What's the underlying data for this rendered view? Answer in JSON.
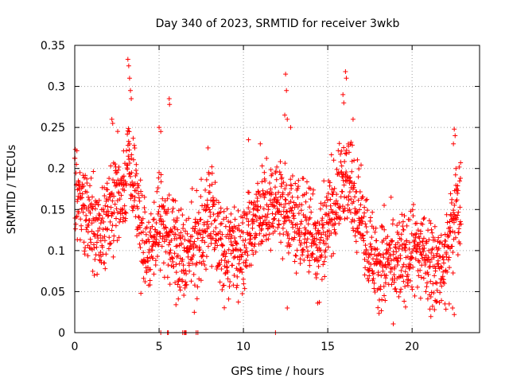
{
  "chart_data": {
    "type": "scatter",
    "title": "Day 340 of 2023, SRMTID for receiver 3wkb",
    "xlabel": "GPS time / hours",
    "ylabel": "SRMTID / TECUs",
    "xlim": [
      0,
      24
    ],
    "ylim": [
      0,
      0.35
    ],
    "xticks": [
      0,
      5,
      10,
      15,
      20
    ],
    "yticks": [
      0,
      0.05,
      0.1,
      0.15,
      0.2,
      0.25,
      0.3,
      0.35
    ],
    "xtick_labels": [
      "0",
      "5",
      "10",
      "15",
      "20"
    ],
    "ytick_labels": [
      "0",
      "0.05",
      "0.1",
      "0.15",
      "0.2",
      "0.25",
      "0.3",
      "0.35"
    ],
    "grid": true,
    "marker": "+",
    "color": "#ff0000",
    "series": [
      {
        "name": "SRMTID",
        "trend_x": [
          0,
          0.2,
          0.5,
          1.0,
          1.5,
          2.0,
          2.5,
          3.0,
          3.2,
          3.6,
          4.0,
          4.5,
          5.0,
          5.3,
          5.8,
          6.5,
          7.0,
          7.5,
          8.0,
          8.5,
          9.0,
          9.5,
          10.0,
          10.5,
          11.0,
          11.5,
          12.0,
          12.5,
          13.0,
          13.5,
          14.0,
          14.5,
          15.0,
          15.5,
          16.0,
          16.5,
          17.0,
          17.5,
          18.0,
          18.5,
          19.0,
          19.5,
          20.0,
          20.5,
          21.0,
          21.5,
          22.0,
          22.5,
          22.9
        ],
        "trend_y": [
          0.16,
          0.18,
          0.15,
          0.13,
          0.12,
          0.15,
          0.16,
          0.18,
          0.22,
          0.17,
          0.11,
          0.1,
          0.14,
          0.13,
          0.11,
          0.09,
          0.1,
          0.12,
          0.15,
          0.12,
          0.1,
          0.1,
          0.11,
          0.13,
          0.15,
          0.14,
          0.16,
          0.15,
          0.13,
          0.13,
          0.12,
          0.11,
          0.14,
          0.16,
          0.19,
          0.17,
          0.14,
          0.1,
          0.08,
          0.09,
          0.08,
          0.09,
          0.1,
          0.1,
          0.09,
          0.08,
          0.09,
          0.14,
          0.15
        ],
        "spikes": [
          {
            "x": 0.1,
            "y": 0.205
          },
          {
            "x": 2.2,
            "y": 0.26
          },
          {
            "x": 2.25,
            "y": 0.255
          },
          {
            "x": 3.15,
            "y": 0.333
          },
          {
            "x": 3.2,
            "y": 0.325
          },
          {
            "x": 3.25,
            "y": 0.31
          },
          {
            "x": 3.3,
            "y": 0.295
          },
          {
            "x": 3.35,
            "y": 0.285
          },
          {
            "x": 5.0,
            "y": 0.25
          },
          {
            "x": 5.1,
            "y": 0.245
          },
          {
            "x": 5.6,
            "y": 0.285
          },
          {
            "x": 5.62,
            "y": 0.278
          },
          {
            "x": 7.9,
            "y": 0.225
          },
          {
            "x": 10.3,
            "y": 0.235
          },
          {
            "x": 11.0,
            "y": 0.23
          },
          {
            "x": 12.5,
            "y": 0.315
          },
          {
            "x": 12.55,
            "y": 0.295
          },
          {
            "x": 12.45,
            "y": 0.265
          },
          {
            "x": 12.6,
            "y": 0.26
          },
          {
            "x": 12.8,
            "y": 0.25
          },
          {
            "x": 16.05,
            "y": 0.318
          },
          {
            "x": 16.1,
            "y": 0.31
          },
          {
            "x": 15.9,
            "y": 0.29
          },
          {
            "x": 15.95,
            "y": 0.28
          },
          {
            "x": 16.5,
            "y": 0.26
          },
          {
            "x": 22.5,
            "y": 0.248
          },
          {
            "x": 22.55,
            "y": 0.24
          },
          {
            "x": 22.45,
            "y": 0.23
          },
          {
            "x": 22.6,
            "y": 0.2
          }
        ],
        "zero_points": [
          {
            "x": 5.1,
            "y": 0.0
          },
          {
            "x": 5.5,
            "y": 0.0
          },
          {
            "x": 5.55,
            "y": 0.0
          },
          {
            "x": 6.4,
            "y": 0.0
          },
          {
            "x": 6.5,
            "y": 0.0
          },
          {
            "x": 6.55,
            "y": 0.0
          },
          {
            "x": 6.6,
            "y": 0.0
          },
          {
            "x": 7.2,
            "y": 0.0
          },
          {
            "x": 7.3,
            "y": 0.0
          },
          {
            "x": 11.9,
            "y": 0.0
          }
        ],
        "low_points": [
          {
            "x": 22.5,
            "y": 0.022
          },
          {
            "x": 22.4,
            "y": 0.03
          },
          {
            "x": 14.4,
            "y": 0.036
          },
          {
            "x": 14.5,
            "y": 0.037
          },
          {
            "x": 12.6,
            "y": 0.03
          },
          {
            "x": 6.0,
            "y": 0.034
          },
          {
            "x": 22.2,
            "y": 0.035
          }
        ]
      }
    ]
  }
}
